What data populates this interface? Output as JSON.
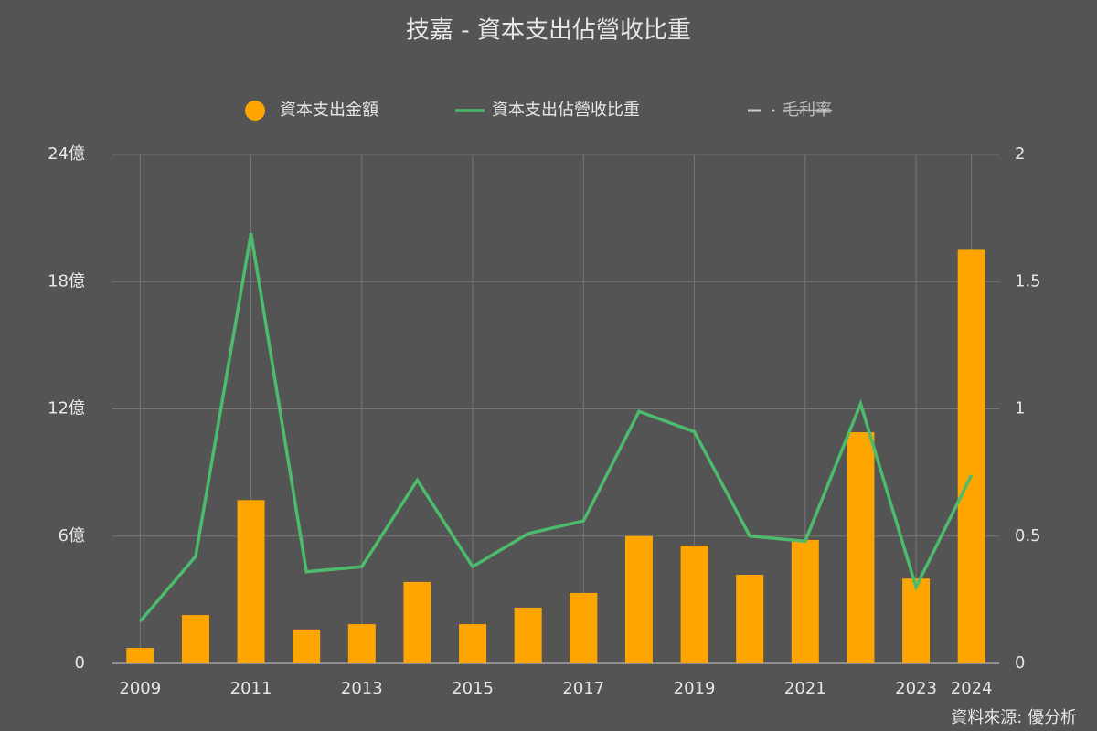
{
  "chart_data": {
    "type": "bar_line",
    "title": "技嘉 - 資本支出佔營收比重",
    "source": "資料來源: 優分析",
    "categories": [
      "2009",
      null,
      "2011",
      null,
      "2013",
      null,
      "2015",
      null,
      "2017",
      null,
      "2019",
      null,
      "2021",
      null,
      "2023",
      "2024"
    ],
    "series": [
      {
        "name": "資本支出金額",
        "type": "bar",
        "color": "#ffa500",
        "axis": "y",
        "values": [
          0.73,
          2.28,
          7.7,
          1.6,
          1.85,
          3.84,
          1.85,
          2.63,
          3.32,
          6.0,
          5.56,
          4.18,
          5.82,
          10.9,
          4.0,
          19.5
        ]
      },
      {
        "name": "資本支出佔營收比重",
        "type": "line",
        "color": "#4cbb6c",
        "axis": "y2",
        "values": [
          0.165,
          0.42,
          1.69,
          0.36,
          0.38,
          0.72,
          0.38,
          0.51,
          0.56,
          0.99,
          0.91,
          0.5,
          0.48,
          1.02,
          0.3,
          0.74
        ]
      },
      {
        "name": "毛利率",
        "type": "line",
        "color": "#cccccc",
        "axis": "y2",
        "hidden": true,
        "values": [
          null,
          null,
          null,
          null,
          null,
          null,
          null,
          null,
          null,
          null,
          null,
          null,
          null,
          null,
          null,
          null
        ]
      }
    ],
    "ylim": [
      0,
      24
    ],
    "yticks": [
      0,
      {
        "value": 6,
        "label": "6億"
      },
      {
        "value": 12,
        "label": "12億"
      },
      {
        "value": 18,
        "label": "18億"
      },
      {
        "value": 24,
        "label": "24億"
      }
    ],
    "y2lim": [
      0,
      2
    ],
    "y2ticks": [
      0,
      0.5,
      1,
      1.5,
      2
    ],
    "grid": true
  }
}
